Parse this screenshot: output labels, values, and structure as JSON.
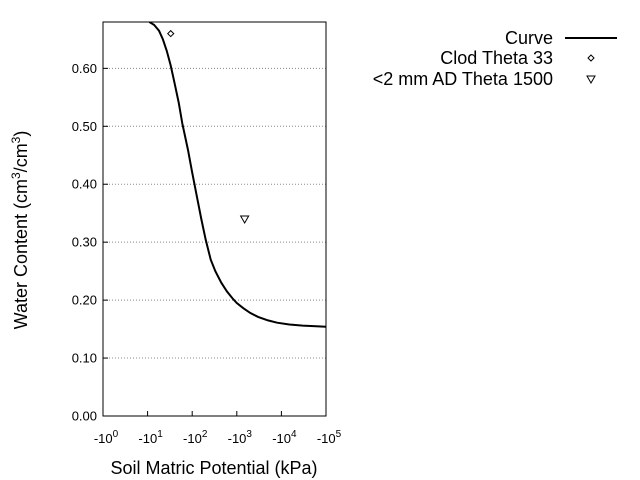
{
  "chart_data": {
    "type": "scatter",
    "xlabel": "Soil Matric Potential (kPa)",
    "ylabel": "Water Content (cm³/cm³)",
    "x_scale": "log",
    "x_sign": "negative",
    "xlim": [
      1,
      100000
    ],
    "ylim": [
      0,
      0.68
    ],
    "grid": {
      "y": true,
      "x": false,
      "style": "dotted"
    },
    "legend_position": "top-right, outside plot",
    "x_ticks": [
      {
        "value": 1,
        "base": "-10",
        "exp": "0"
      },
      {
        "value": 10,
        "base": "-10",
        "exp": "1"
      },
      {
        "value": 100,
        "base": "-10",
        "exp": "2"
      },
      {
        "value": 1000,
        "base": "-10",
        "exp": "3"
      },
      {
        "value": 10000,
        "base": "-10",
        "exp": "4"
      },
      {
        "value": 100000,
        "base": "-10",
        "exp": "5"
      }
    ],
    "y_ticks": [
      {
        "value": 0.0,
        "label": "0.00"
      },
      {
        "value": 0.1,
        "label": "0.10"
      },
      {
        "value": 0.2,
        "label": "0.20"
      },
      {
        "value": 0.3,
        "label": "0.30"
      },
      {
        "value": 0.4,
        "label": "0.40"
      },
      {
        "value": 0.5,
        "label": "0.50"
      },
      {
        "value": 0.6,
        "label": "0.60"
      }
    ],
    "series": [
      {
        "name": "Curve",
        "kind": "line",
        "color": "#000000",
        "x": [
          11,
          14,
          18,
          22,
          27,
          33,
          40,
          50,
          60,
          80,
          100,
          130,
          160,
          200,
          260,
          330,
          450,
          600,
          800,
          1000,
          1400,
          2000,
          3000,
          5000,
          8000,
          15000,
          30000,
          60000,
          100000
        ],
        "y": [
          0.68,
          0.675,
          0.665,
          0.65,
          0.63,
          0.605,
          0.575,
          0.54,
          0.505,
          0.46,
          0.42,
          0.375,
          0.34,
          0.305,
          0.27,
          0.25,
          0.23,
          0.215,
          0.203,
          0.195,
          0.186,
          0.178,
          0.171,
          0.165,
          0.161,
          0.158,
          0.156,
          0.155,
          0.154
        ]
      },
      {
        "name": "Clod Theta 33",
        "kind": "marker",
        "marker": "diamond",
        "color": "#000000",
        "x": [
          33
        ],
        "y": [
          0.66
        ]
      },
      {
        "name": "<2 mm AD Theta 1500",
        "kind": "marker",
        "marker": "triangle-down",
        "color": "#000000",
        "x": [
          1500
        ],
        "y": [
          0.34
        ]
      }
    ]
  }
}
